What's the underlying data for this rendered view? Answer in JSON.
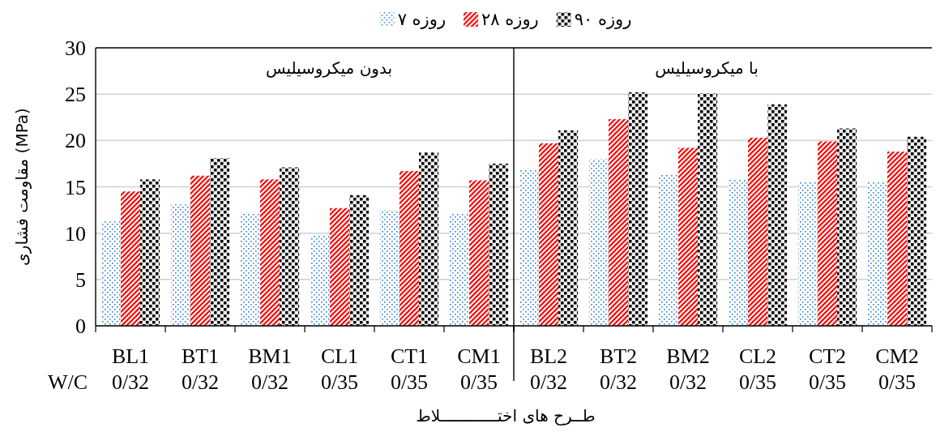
{
  "chart_data": [
    {
      "type": "bar",
      "categories": [
        "BL1\n0/32",
        "BT1\n0/32",
        "BM1\n0/32",
        "CL1\n0/35",
        "CT1\n0/35",
        "CM1\n0/35"
      ],
      "series": [
        {
          "name": "۷ روزه",
          "color": "#2f7fd0",
          "values": [
            11.3,
            13.1,
            12.2,
            9.8,
            12.5,
            12.1
          ]
        },
        {
          "name": "۲۸ روزه",
          "color": "#ff0000",
          "values": [
            14.5,
            16.2,
            15.8,
            12.7,
            16.7,
            15.7
          ]
        },
        {
          "name": "۹۰ روزه",
          "color": "#000000",
          "values": [
            15.8,
            18.1,
            17.1,
            14.1,
            18.7,
            17.5
          ]
        }
      ],
      "ylabel": "مقاومت فشاری  (MPa)",
      "xlabel": "طــرح های اختــــــــــــلاط",
      "annotations": [
        "بدون میکروسیلیس",
        "W/C"
      ],
      "ylim": [
        0,
        30
      ],
      "yticks": [
        0,
        5,
        10,
        15,
        20,
        25,
        30
      ],
      "grid": "y",
      "legend": "top"
    },
    {
      "type": "bar",
      "categories": [
        "BL2\n0/32",
        "BT2\n0/32",
        "BM2\n0/32",
        "CL2\n0/35",
        "CT2\n0/35",
        "CM2\n0/35"
      ],
      "series": [
        {
          "color": "#2f7fd0",
          "values": [
            16.9,
            18.0,
            16.3,
            15.8,
            15.5,
            15.5
          ]
        },
        {
          "color": "#ff0000",
          "values": [
            19.7,
            22.3,
            19.2,
            20.3,
            19.9,
            18.8
          ]
        },
        {
          "color": "#000000",
          "values": [
            21.1,
            25.2,
            25.1,
            23.9,
            21.3,
            20.4
          ]
        }
      ],
      "annotations": [
        "با میکروسیلیس"
      ],
      "ylim": [
        0,
        30
      ],
      "yticks": [
        0,
        5,
        10,
        15,
        20,
        25,
        30
      ],
      "tick_labels": "x",
      "grid": "y"
    }
  ]
}
